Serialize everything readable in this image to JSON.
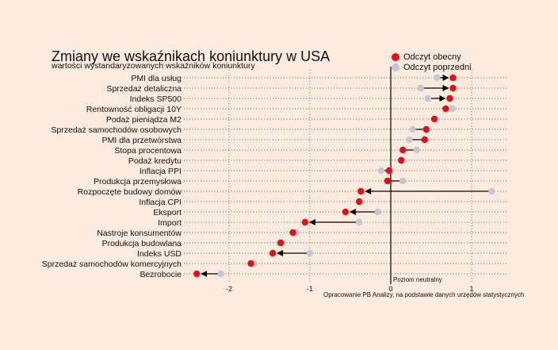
{
  "chart_data": {
    "type": "scatter",
    "title": "Zmiany we wskaźnikach koniunktury w USA",
    "subtitle": "wartości wystandaryzowanych wskaźników koniunktury",
    "series": [
      {
        "name": "Odczyt obecny",
        "color": "#e3101b"
      },
      {
        "name": "Odczyt poprzedni",
        "color": "#c3c7d6"
      }
    ],
    "categories": [
      "PMI dla usług",
      "Sprzedaż detaliczna",
      "Indeks SP500",
      "Rentowność obligacji 10Y",
      "Podaż pieniądza M2",
      "Sprzedaż samochodów osobowych",
      "PMI dla przetwórstwa",
      "Stopa procentowa",
      "Podaż kredytu",
      "Inflacja PPI",
      "Produkcja przemysłowa",
      "Rozpoczęte budowy domów",
      "Inflacja CPI",
      "Eksport",
      "Import",
      "Nastroje konsumentów",
      "Produkcja budowlana",
      "Indeks USD",
      "Sprzedaż samochodów komercyjnych",
      "Bezrobocie"
    ],
    "current": [
      0.77,
      0.77,
      0.73,
      0.68,
      0.54,
      0.44,
      0.42,
      0.15,
      0.13,
      -0.02,
      -0.04,
      -0.37,
      -0.39,
      -0.56,
      -1.06,
      -1.21,
      -1.36,
      -1.46,
      -1.73,
      -2.4
    ],
    "previous": [
      0.57,
      0.37,
      0.46,
      0.76,
      0.54,
      0.27,
      0.23,
      0.32,
      0.13,
      -0.12,
      0.15,
      1.25,
      -0.39,
      -0.16,
      -0.39,
      -1.17,
      -1.38,
      -1.0,
      -1.69,
      -2.1
    ],
    "arrows": [
      true,
      true,
      true,
      false,
      false,
      false,
      false,
      false,
      false,
      false,
      false,
      true,
      false,
      true,
      true,
      false,
      false,
      true,
      false,
      true
    ],
    "xlim": [
      -2.5,
      1.3
    ],
    "xticks": [
      -2,
      -1,
      0,
      1
    ],
    "xtick_labels": [
      "-2",
      "-1",
      "0",
      "1"
    ],
    "neutral_label": "Poziom neutralny",
    "grid": true,
    "legend_position": "top-right",
    "source": "Opracowanie PB Analizy, na podstawie danych urzędów statystycznych"
  }
}
